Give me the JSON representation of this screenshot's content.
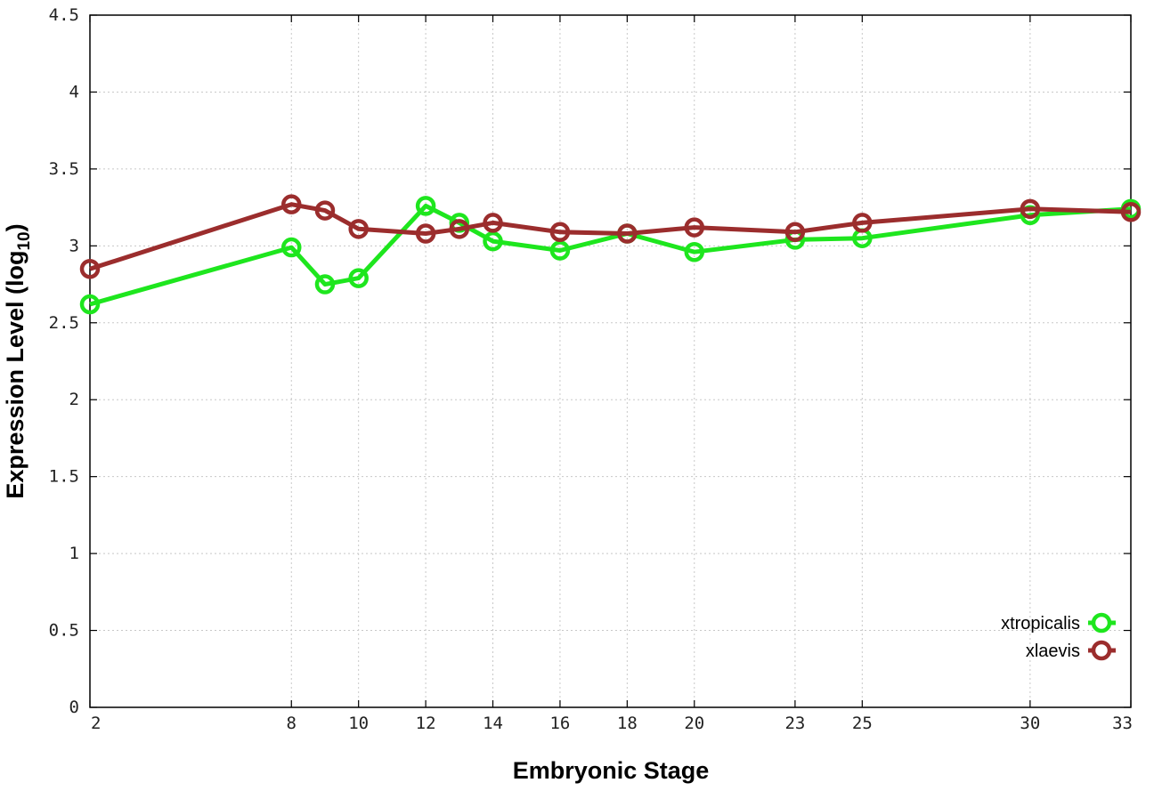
{
  "chart_data": {
    "type": "line",
    "xlabel": "Embryonic Stage",
    "ylabel": "Expression Level (log",
    "ylabel_sub": "10",
    "ylabel_end": ")",
    "xlim": [
      2,
      33
    ],
    "ylim": [
      0,
      4.5
    ],
    "x_ticks": [
      2,
      8,
      10,
      12,
      14,
      16,
      18,
      20,
      23,
      25,
      30,
      33
    ],
    "y_ticks": [
      "0",
      "0.5",
      "1",
      "1.5",
      "2",
      "2.5",
      "3",
      "3.5",
      "4",
      "4.5"
    ],
    "grid": true,
    "legend_position": "bottom-right",
    "series": [
      {
        "name": "xtropicalis",
        "color": "#1ee61e",
        "x": [
          2,
          8,
          9,
          10,
          12,
          13,
          14,
          16,
          18,
          20,
          23,
          25,
          30,
          33
        ],
        "y": [
          2.62,
          2.99,
          2.75,
          2.79,
          3.26,
          3.15,
          3.03,
          2.97,
          3.08,
          2.96,
          3.04,
          3.05,
          3.2,
          3.24
        ]
      },
      {
        "name": "xlaevis",
        "color": "#9b2d2d",
        "x": [
          2,
          8,
          9,
          10,
          12,
          13,
          14,
          16,
          18,
          20,
          23,
          25,
          30,
          33
        ],
        "y": [
          2.85,
          3.27,
          3.23,
          3.11,
          3.08,
          3.11,
          3.15,
          3.09,
          3.08,
          3.12,
          3.09,
          3.15,
          3.24,
          3.22
        ]
      }
    ]
  }
}
